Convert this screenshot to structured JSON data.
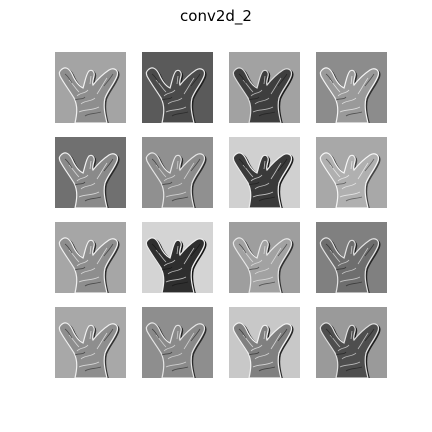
{
  "figure": {
    "title": "conv2d_2"
  },
  "feature_maps": [
    {
      "background": "#a4a4a4",
      "shape": "#8e8e8e",
      "edge": "#f0f0f0",
      "shadow": "#3a3a3a"
    },
    {
      "background": "#5a5a5a",
      "shape": "#4a4a4a",
      "edge": "#e8e8e8",
      "shadow": "#202020"
    },
    {
      "background": "#a2a2a2",
      "shape": "#3e3e3e",
      "edge": "#dcdcdc",
      "shadow": "#1c1c1c"
    },
    {
      "background": "#8c8c8c",
      "shape": "#9a9a9a",
      "edge": "#f4f4f4",
      "shadow": "#303030"
    },
    {
      "background": "#707070",
      "shape": "#8a8a8a",
      "edge": "#f2f2f2",
      "shadow": "#2a2a2a"
    },
    {
      "background": "#909090",
      "shape": "#8c8c8c",
      "edge": "#e6e6e6",
      "shadow": "#2c2c2c"
    },
    {
      "background": "#d0d0d0",
      "shape": "#3a3a3a",
      "edge": "#efefef",
      "shadow": "#1a1a1a"
    },
    {
      "background": "#a8a8a8",
      "shape": "#b0b0b0",
      "edge": "#f6f6f6",
      "shadow": "#444444"
    },
    {
      "background": "#a6a6a6",
      "shape": "#8e8e8e",
      "edge": "#f0f0f0",
      "shadow": "#2e2e2e"
    },
    {
      "background": "#d4d4d4",
      "shape": "#2e2e2e",
      "edge": "#eeeeee",
      "shadow": "#141414"
    },
    {
      "background": "#9e9e9e",
      "shape": "#a2a2a2",
      "edge": "#e8e8e8",
      "shadow": "#303030"
    },
    {
      "background": "#808080",
      "shape": "#6e6e6e",
      "edge": "#e4e4e4",
      "shadow": "#262626"
    },
    {
      "background": "#a8a8a8",
      "shape": "#8e8e8e",
      "edge": "#f0f0f0",
      "shadow": "#323232"
    },
    {
      "background": "#8e8e8e",
      "shape": "#8a8a8a",
      "edge": "#e6e6e6",
      "shadow": "#2a2a2a"
    },
    {
      "background": "#c8c8c8",
      "shape": "#808080",
      "edge": "#f2f2f2",
      "shadow": "#262626"
    },
    {
      "background": "#9a9a9a",
      "shape": "#4e4e4e",
      "edge": "#e0e0e0",
      "shadow": "#1e1e1e"
    }
  ]
}
